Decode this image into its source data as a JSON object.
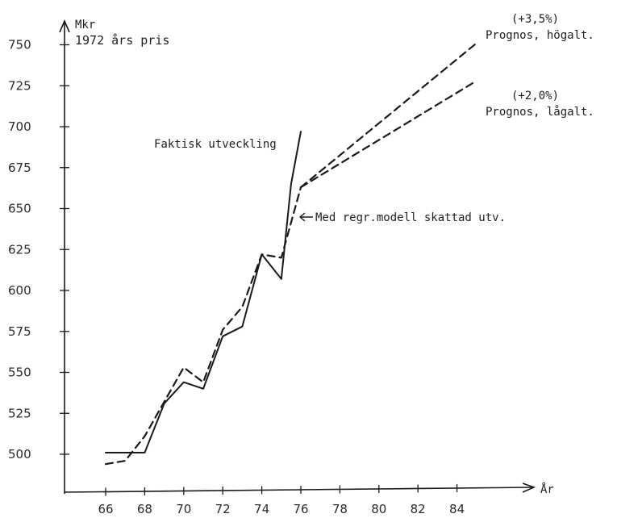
{
  "chart_data": {
    "type": "line",
    "y_unit_label": "Mkr",
    "y_unit_sublabel": "1972 års pris",
    "x_unit_label": "År",
    "x_ticks": [
      "66",
      "68",
      "70",
      "72",
      "74",
      "76",
      "78",
      "80",
      "82",
      "84"
    ],
    "y_ticks": [
      "500",
      "525",
      "550",
      "575",
      "600",
      "625",
      "650",
      "675",
      "700",
      "725",
      "750"
    ],
    "xlim": [
      64.6,
      86.5
    ],
    "ylim": [
      473,
      760
    ],
    "grid": false,
    "series": [
      {
        "name": "Faktisk utveckling",
        "style": "solid",
        "x": [
          66,
          67,
          68,
          69,
          70,
          71,
          72,
          73,
          74,
          75,
          75.5,
          76
        ],
        "y": [
          501,
          501,
          501,
          531,
          544,
          540,
          572,
          578,
          622,
          607,
          665,
          697
        ]
      },
      {
        "name": "Med regr.modell skattad utv.",
        "style": "dashed",
        "x": [
          66,
          67,
          68,
          69,
          70,
          71,
          72,
          73,
          74,
          75,
          76
        ],
        "y": [
          494,
          496,
          511,
          532,
          553,
          544,
          576,
          590,
          622,
          620,
          663
        ]
      },
      {
        "name": "Prognos, högalt.",
        "annotation": "(+3,5%)",
        "style": "dashed",
        "x": [
          76,
          85
        ],
        "y": [
          663,
          751
        ]
      },
      {
        "name": "Prognos, lågalt.",
        "annotation": "(+2,0%)",
        "style": "dashed",
        "x": [
          76,
          85
        ],
        "y": [
          663,
          728
        ]
      }
    ]
  },
  "annotations": {
    "actual_label": "Faktisk utveckling",
    "model_label": "Med regr.modell skattad utv.",
    "high_pct": "(+3,5%)",
    "high_label": "Prognos, högalt.",
    "low_pct": "(+2,0%)",
    "low_label": "Prognos, lågalt."
  },
  "colors": {
    "ink": "#1a1a1a",
    "paper": "#ffffff"
  }
}
